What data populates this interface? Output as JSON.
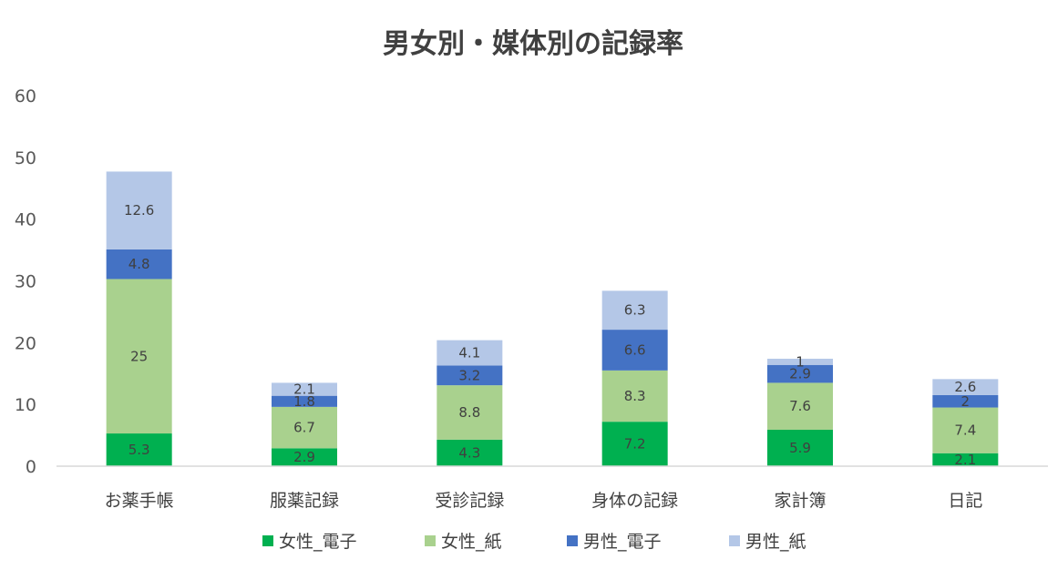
{
  "chart_data": {
    "type": "bar",
    "stacked": true,
    "title": "男女別・媒体別の記録率",
    "xlabel": "",
    "ylabel": "",
    "ylim": [
      0,
      60
    ],
    "yticks": [
      0,
      10,
      20,
      30,
      40,
      50,
      60
    ],
    "grid": false,
    "legend_position": "bottom",
    "categories": [
      "お薬手帳",
      "服薬記録",
      "受診記録",
      "身体の記録",
      "家計簿",
      "日記"
    ],
    "series": [
      {
        "name": "女性_電子",
        "color": "#00B050",
        "values": [
          5.3,
          2.9,
          4.3,
          7.2,
          5.9,
          2.1
        ]
      },
      {
        "name": "女性_紙",
        "color": "#A9D18E",
        "values": [
          25,
          6.7,
          8.8,
          8.3,
          7.6,
          7.4
        ]
      },
      {
        "name": "男性_電子",
        "color": "#4472C4",
        "values": [
          4.8,
          1.8,
          3.2,
          6.6,
          2.9,
          2
        ]
      },
      {
        "name": "男性_紙",
        "color": "#B4C7E7",
        "values": [
          12.6,
          2.1,
          4.1,
          6.3,
          1,
          2.6
        ]
      }
    ]
  }
}
